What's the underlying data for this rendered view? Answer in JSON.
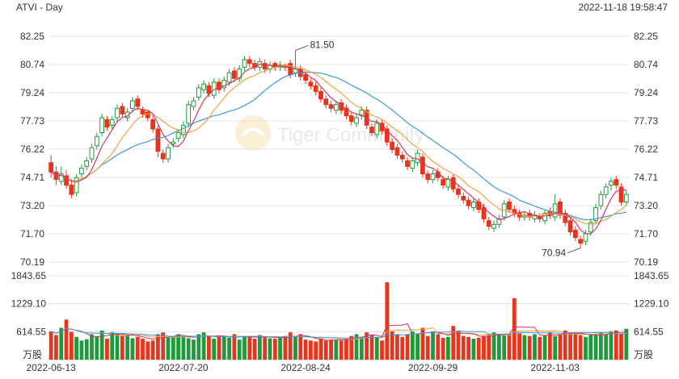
{
  "header": {
    "title": "ATVI - Day",
    "timestamp": "2022-11-18 19:58:47"
  },
  "watermark": {
    "text": "Tiger Community"
  },
  "colors": {
    "up": "#1e9a3c",
    "down": "#e8341c",
    "ma5": "#d8345f",
    "ma10": "#f2a33a",
    "ma20": "#3a9ad9",
    "grid": "#e3e3e3",
    "axis_text": "#333333"
  },
  "chart_data": {
    "type": "candlestick",
    "price_axis": {
      "ticks": [
        "82.25",
        "80.74",
        "79.24",
        "77.73",
        "76.22",
        "74.71",
        "73.20",
        "71.70",
        "70.19"
      ],
      "ylim": [
        70.19,
        82.25
      ]
    },
    "volume_axis": {
      "ticks": [
        "1843.65",
        "1229.10",
        "614.55"
      ],
      "unit": "万股",
      "ylim": [
        0,
        1843.65
      ]
    },
    "x_labels": [
      "2022-06-13",
      "2022-07-20",
      "2022-08-24",
      "2022-09-29",
      "2022-11-03"
    ],
    "x_label_index": [
      0,
      26,
      50,
      75,
      99
    ],
    "annotations": [
      {
        "text": "81.50",
        "index": 48,
        "value": 81.5
      },
      {
        "text": "70.94",
        "index": 104,
        "value": 70.94
      }
    ],
    "closes": [
      75.0,
      74.6,
      74.9,
      74.3,
      73.8,
      74.7,
      75.2,
      75.6,
      76.3,
      76.9,
      77.9,
      77.4,
      77.8,
      78.4,
      78.1,
      78.2,
      78.8,
      78.5,
      78.1,
      77.9,
      77.3,
      76.1,
      75.7,
      76.3,
      76.6,
      77.1,
      77.5,
      78.6,
      78.8,
      79.5,
      79.7,
      79.2,
      79.8,
      79.4,
      79.9,
      80.3,
      80.0,
      80.5,
      81.0,
      80.8,
      80.6,
      80.9,
      80.5,
      80.7,
      80.6,
      80.7,
      80.6,
      80.2,
      80.5,
      80.1,
      79.9,
      79.6,
      79.3,
      78.9,
      78.6,
      78.4,
      78.6,
      78.3,
      78.0,
      77.7,
      77.9,
      78.3,
      77.5,
      77.1,
      77.6,
      77.2,
      76.6,
      76.2,
      75.9,
      75.7,
      75.3,
      75.6,
      76.0,
      74.9,
      74.6,
      74.9,
      74.7,
      74.3,
      74.6,
      74.1,
      73.8,
      73.5,
      73.2,
      73.4,
      73.0,
      72.5,
      72.1,
      72.2,
      72.5,
      73.3,
      73.0,
      72.8,
      72.6,
      72.7,
      72.6,
      72.7,
      72.5,
      72.8,
      72.7,
      73.3,
      72.7,
      72.3,
      71.8,
      71.5,
      71.2,
      71.7,
      72.3,
      73.1,
      73.8,
      74.2,
      74.5,
      74.3,
      73.4,
      73.8
    ],
    "opens": [
      75.5,
      75.0,
      74.5,
      74.8,
      74.3,
      73.9,
      74.9,
      75.3,
      75.7,
      76.4,
      77.1,
      77.8,
      77.5,
      77.9,
      78.5,
      77.9,
      78.4,
      78.9,
      78.3,
      78.2,
      77.8,
      77.3,
      76.0,
      75.7,
      76.5,
      76.8,
      77.0,
      77.6,
      78.5,
      79.0,
      79.4,
      79.6,
      79.1,
      79.8,
      79.5,
      79.8,
      80.4,
      80.0,
      80.6,
      81.0,
      80.8,
      80.6,
      80.8,
      80.5,
      80.8,
      80.6,
      80.7,
      80.8,
      80.3,
      80.5,
      80.2,
      79.8,
      79.6,
      79.3,
      78.9,
      78.6,
      78.3,
      78.7,
      78.4,
      78.0,
      77.6,
      78.0,
      78.3,
      77.4,
      77.0,
      77.6,
      77.3,
      76.6,
      76.3,
      75.9,
      75.6,
      75.2,
      75.5,
      75.8,
      74.9,
      74.6,
      75.0,
      74.6,
      74.2,
      74.7,
      74.1,
      73.7,
      73.5,
      73.1,
      73.4,
      73.1,
      72.4,
      72.0,
      72.2,
      72.6,
      73.4,
      73.0,
      72.8,
      72.6,
      72.8,
      72.5,
      72.6,
      72.4,
      72.9,
      72.6,
      73.4,
      72.8,
      72.4,
      71.9,
      71.4,
      71.3,
      71.8,
      72.4,
      73.2,
      73.8,
      74.3,
      74.6,
      74.2,
      73.4
    ],
    "highs": [
      75.9,
      75.3,
      75.3,
      75.1,
      74.6,
      74.9,
      75.4,
      75.8,
      76.5,
      77.1,
      78.1,
      78.0,
      78.0,
      78.6,
      78.7,
      78.4,
      79.0,
      79.1,
      78.5,
      78.3,
      78.0,
      77.5,
      76.2,
      76.5,
      76.8,
      77.3,
      77.7,
      78.8,
      79.0,
      79.7,
      79.9,
      79.8,
      80.0,
      80.0,
      80.1,
      80.5,
      80.6,
      80.7,
      81.2,
      81.2,
      81.0,
      81.1,
      81.0,
      80.9,
      80.9,
      80.9,
      80.8,
      81.0,
      81.5,
      80.7,
      80.4,
      80.0,
      79.8,
      79.5,
      79.1,
      78.8,
      78.8,
      78.9,
      78.6,
      78.2,
      78.1,
      78.5,
      78.5,
      77.6,
      77.8,
      77.8,
      77.5,
      76.8,
      76.5,
      76.1,
      75.8,
      75.8,
      76.2,
      76.0,
      75.1,
      75.1,
      75.2,
      74.8,
      74.8,
      74.9,
      74.3,
      73.9,
      73.7,
      73.6,
      73.6,
      73.3,
      72.6,
      72.4,
      72.7,
      73.5,
      73.6,
      73.2,
      73.0,
      72.9,
      73.0,
      72.9,
      72.8,
      73.0,
      73.1,
      73.8,
      73.6,
      73.0,
      72.6,
      72.1,
      71.6,
      71.9,
      72.5,
      73.3,
      74.0,
      74.4,
      74.7,
      74.8,
      74.4,
      74.0
    ],
    "lows": [
      74.7,
      74.3,
      74.3,
      74.1,
      73.6,
      73.7,
      74.7,
      75.1,
      75.5,
      76.2,
      76.9,
      77.2,
      77.3,
      77.7,
      77.9,
      77.7,
      78.2,
      78.3,
      77.9,
      77.7,
      77.1,
      75.8,
      75.5,
      75.5,
      76.3,
      76.6,
      76.8,
      77.4,
      78.3,
      78.8,
      79.2,
      79.0,
      78.9,
      79.2,
      79.3,
      79.6,
      79.8,
      79.8,
      80.4,
      80.6,
      80.4,
      80.4,
      80.3,
      80.3,
      80.4,
      80.4,
      80.4,
      80.0,
      80.1,
      79.9,
      79.7,
      79.4,
      79.1,
      78.7,
      78.4,
      78.2,
      78.1,
      78.1,
      77.8,
      77.5,
      77.4,
      77.8,
      77.3,
      76.9,
      76.8,
      77.0,
      76.4,
      76.0,
      75.7,
      75.5,
      75.1,
      75.0,
      75.3,
      74.7,
      74.4,
      74.4,
      74.5,
      74.1,
      74.0,
      73.9,
      73.6,
      73.3,
      73.0,
      72.9,
      72.8,
      72.3,
      71.9,
      71.8,
      72.0,
      72.4,
      72.8,
      72.6,
      72.4,
      72.4,
      72.4,
      72.3,
      72.3,
      72.2,
      72.5,
      72.4,
      72.5,
      72.1,
      71.6,
      71.3,
      70.94,
      71.1,
      71.6,
      72.2,
      73.0,
      73.6,
      74.0,
      74.1,
      73.2,
      73.2
    ],
    "volumes": [
      620,
      540,
      700,
      880,
      610,
      500,
      420,
      450,
      560,
      520,
      640,
      460,
      600,
      580,
      540,
      530,
      470,
      500,
      460,
      400,
      420,
      560,
      600,
      480,
      500,
      560,
      520,
      470,
      440,
      560,
      600,
      520,
      460,
      500,
      520,
      480,
      560,
      440,
      500,
      520,
      460,
      540,
      500,
      470,
      460,
      480,
      520,
      600,
      500,
      560,
      440,
      420,
      400,
      460,
      420,
      440,
      440,
      420,
      460,
      520,
      560,
      500,
      600,
      540,
      480,
      420,
      1700,
      620,
      560,
      500,
      560,
      620,
      560,
      700,
      520,
      620,
      560,
      480,
      500,
      740,
      640,
      520,
      500,
      460,
      480,
      520,
      560,
      600,
      560,
      540,
      560,
      1350,
      580,
      540,
      520,
      560,
      500,
      540,
      600,
      520,
      560,
      640,
      600,
      560,
      540,
      500,
      540,
      560,
      600,
      560,
      620,
      640,
      560,
      680
    ]
  }
}
